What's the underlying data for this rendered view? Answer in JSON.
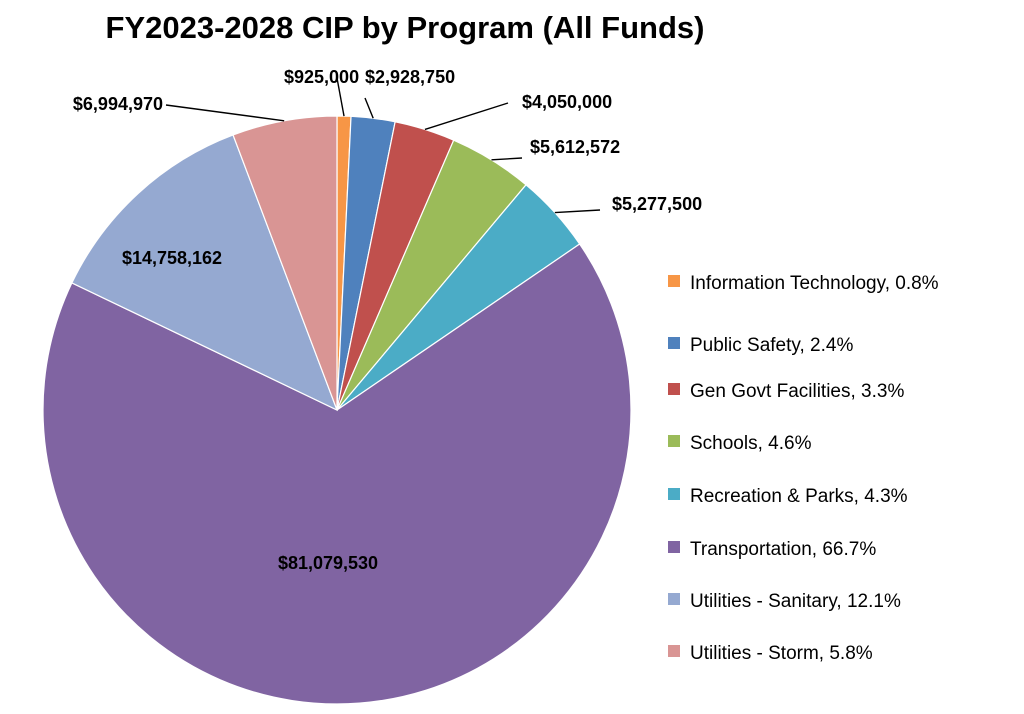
{
  "chart_data": {
    "type": "pie",
    "title": "FY2023-2028 CIP by Program (All Funds)",
    "slices": [
      {
        "name": "Information Technology",
        "value": 925000,
        "value_label": "$925,000",
        "percent_label": "0.8%",
        "color": "#F79646"
      },
      {
        "name": "Public Safety",
        "value": 2928750,
        "value_label": "$2,928,750",
        "percent_label": "2.4%",
        "color": "#4F81BD"
      },
      {
        "name": "Gen Govt Facilities",
        "value": 4050000,
        "value_label": "$4,050,000",
        "percent_label": "3.3%",
        "color": "#C0504D"
      },
      {
        "name": "Schools",
        "value": 5612572,
        "value_label": "$5,612,572",
        "percent_label": "4.6%",
        "color": "#9BBB59"
      },
      {
        "name": "Recreation & Parks",
        "value": 5277500,
        "value_label": "$5,277,500",
        "percent_label": "4.3%",
        "color": "#4BACC6"
      },
      {
        "name": "Transportation",
        "value": 81079530,
        "value_label": "$81,079,530",
        "percent_label": "66.7%",
        "color": "#8064A2"
      },
      {
        "name": "Utilities - Sanitary",
        "value": 14758162,
        "value_label": "$14,758,162",
        "percent_label": "12.1%",
        "color": "#95A9D1"
      },
      {
        "name": "Utilities - Storm",
        "value": 6994970,
        "value_label": "$6,994,970",
        "percent_label": "5.8%",
        "color": "#D99594"
      }
    ],
    "legend_position": "right"
  }
}
